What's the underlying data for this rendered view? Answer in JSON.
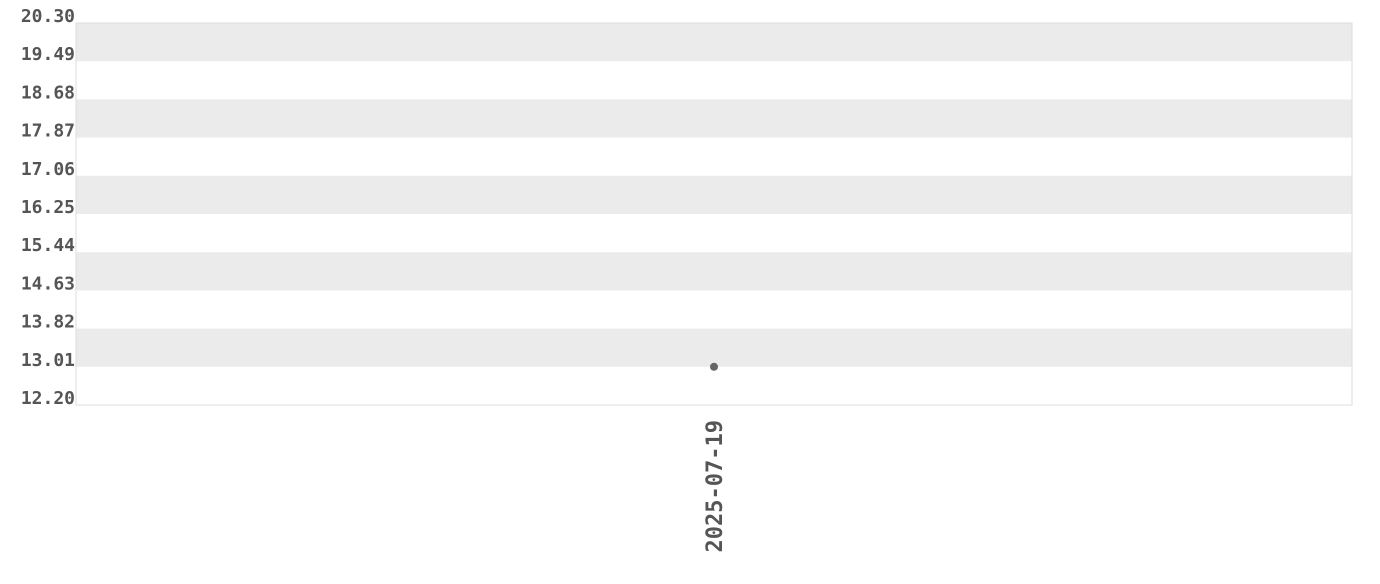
{
  "chart_data": {
    "type": "scatter",
    "title": "",
    "xlabel": "",
    "ylabel": "",
    "categories": [
      "2025-07-19"
    ],
    "values": [
      13.01
    ],
    "ylim": [
      12.2,
      20.3
    ],
    "yticks": [
      "20.30",
      "19.49",
      "18.68",
      "17.87",
      "17.06",
      "16.25",
      "15.44",
      "14.63",
      "13.82",
      "13.01",
      "12.20"
    ],
    "grid": "alternating horizontal bands",
    "colors": {
      "band": "#ebebeb",
      "point": "#666666",
      "text": "#555555",
      "border": "#dddddd"
    }
  }
}
